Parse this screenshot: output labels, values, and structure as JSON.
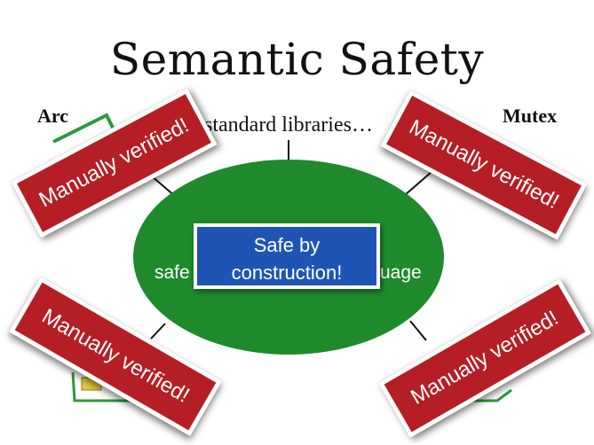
{
  "title": "Semantic Safety",
  "center": {
    "badge_line1": "Safe by",
    "badge_line2": "construction!",
    "left_text": "safe",
    "right_text": "uage"
  },
  "top_label": "standard libraries…",
  "corner_labels": {
    "top_left": "Arc",
    "top_right": "Mutex"
  },
  "stamps": [
    {
      "text": "Manually verified!"
    },
    {
      "text": "Manually verified!"
    },
    {
      "text": "Manually verified!"
    },
    {
      "text": "Manually verified!"
    }
  ],
  "colors": {
    "oval_green": "#1f8a2c",
    "badge_blue": "#1e55b4",
    "stamp_red": "#b51e24"
  }
}
